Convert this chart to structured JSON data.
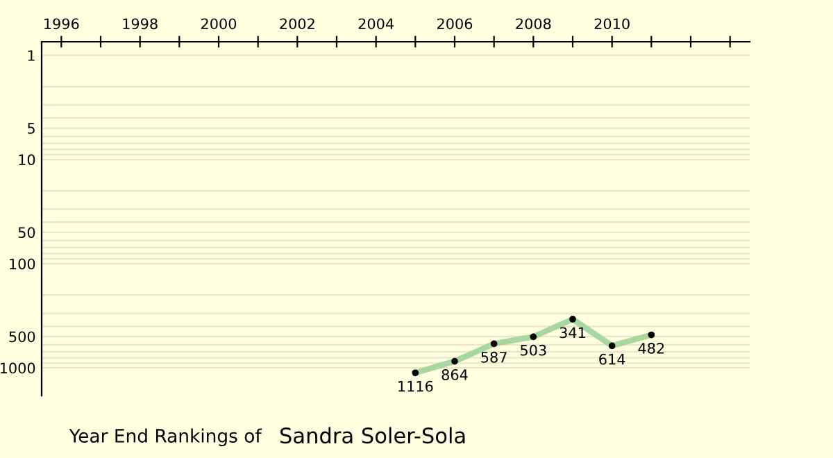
{
  "chart_data": {
    "type": "line",
    "x": [
      2005,
      2006,
      2007,
      2008,
      2009,
      2010,
      2011
    ],
    "series": [
      {
        "color": "#a8d8a0",
        "values": [
          1116,
          864,
          587,
          503,
          341,
          614,
          482
        ]
      }
    ],
    "data_labels": true,
    "marker": "circle",
    "line_style": "solid",
    "log": "y",
    "grid": "y",
    "xlim": [
      1995.5,
      2013.5
    ],
    "ylim": [
      1850,
      0.74
    ],
    "xticks": [
      1996,
      {
        "value": 1997,
        "label": null
      },
      1998,
      {
        "value": 1999,
        "label": null
      },
      2000,
      {
        "value": 2001,
        "label": null
      },
      2002,
      {
        "value": 2003,
        "label": null
      },
      2004,
      {
        "value": 2005,
        "label": null
      },
      2006,
      {
        "value": 2007,
        "label": null
      },
      2008,
      {
        "value": 2009,
        "label": null
      },
      2010,
      {
        "value": 2011,
        "label": null
      },
      {
        "value": 2012,
        "label": null
      },
      {
        "value": 2013,
        "label": null
      }
    ],
    "yticks": [
      1,
      {
        "value": 2,
        "label": null
      },
      {
        "value": 3,
        "label": null
      },
      {
        "value": 4,
        "label": null
      },
      5,
      {
        "value": 6,
        "label": null
      },
      {
        "value": 7,
        "label": null
      },
      {
        "value": 8,
        "label": null
      },
      {
        "value": 9,
        "label": null
      },
      10,
      {
        "value": 20,
        "label": null
      },
      {
        "value": 30,
        "label": null
      },
      {
        "value": 40,
        "label": null
      },
      50,
      {
        "value": 60,
        "label": null
      },
      {
        "value": 70,
        "label": null
      },
      {
        "value": 80,
        "label": null
      },
      {
        "value": 90,
        "label": null
      },
      100,
      {
        "value": 200,
        "label": null
      },
      {
        "value": 300,
        "label": null
      },
      {
        "value": 400,
        "label": null
      },
      500,
      {
        "value": 600,
        "label": null
      },
      {
        "value": 700,
        "label": null
      },
      {
        "value": 800,
        "label": null
      },
      {
        "value": 900,
        "label": null
      },
      1000
    ],
    "annotations": [
      "Year End Rankings of",
      "Sandra Soler-Sola"
    ]
  }
}
